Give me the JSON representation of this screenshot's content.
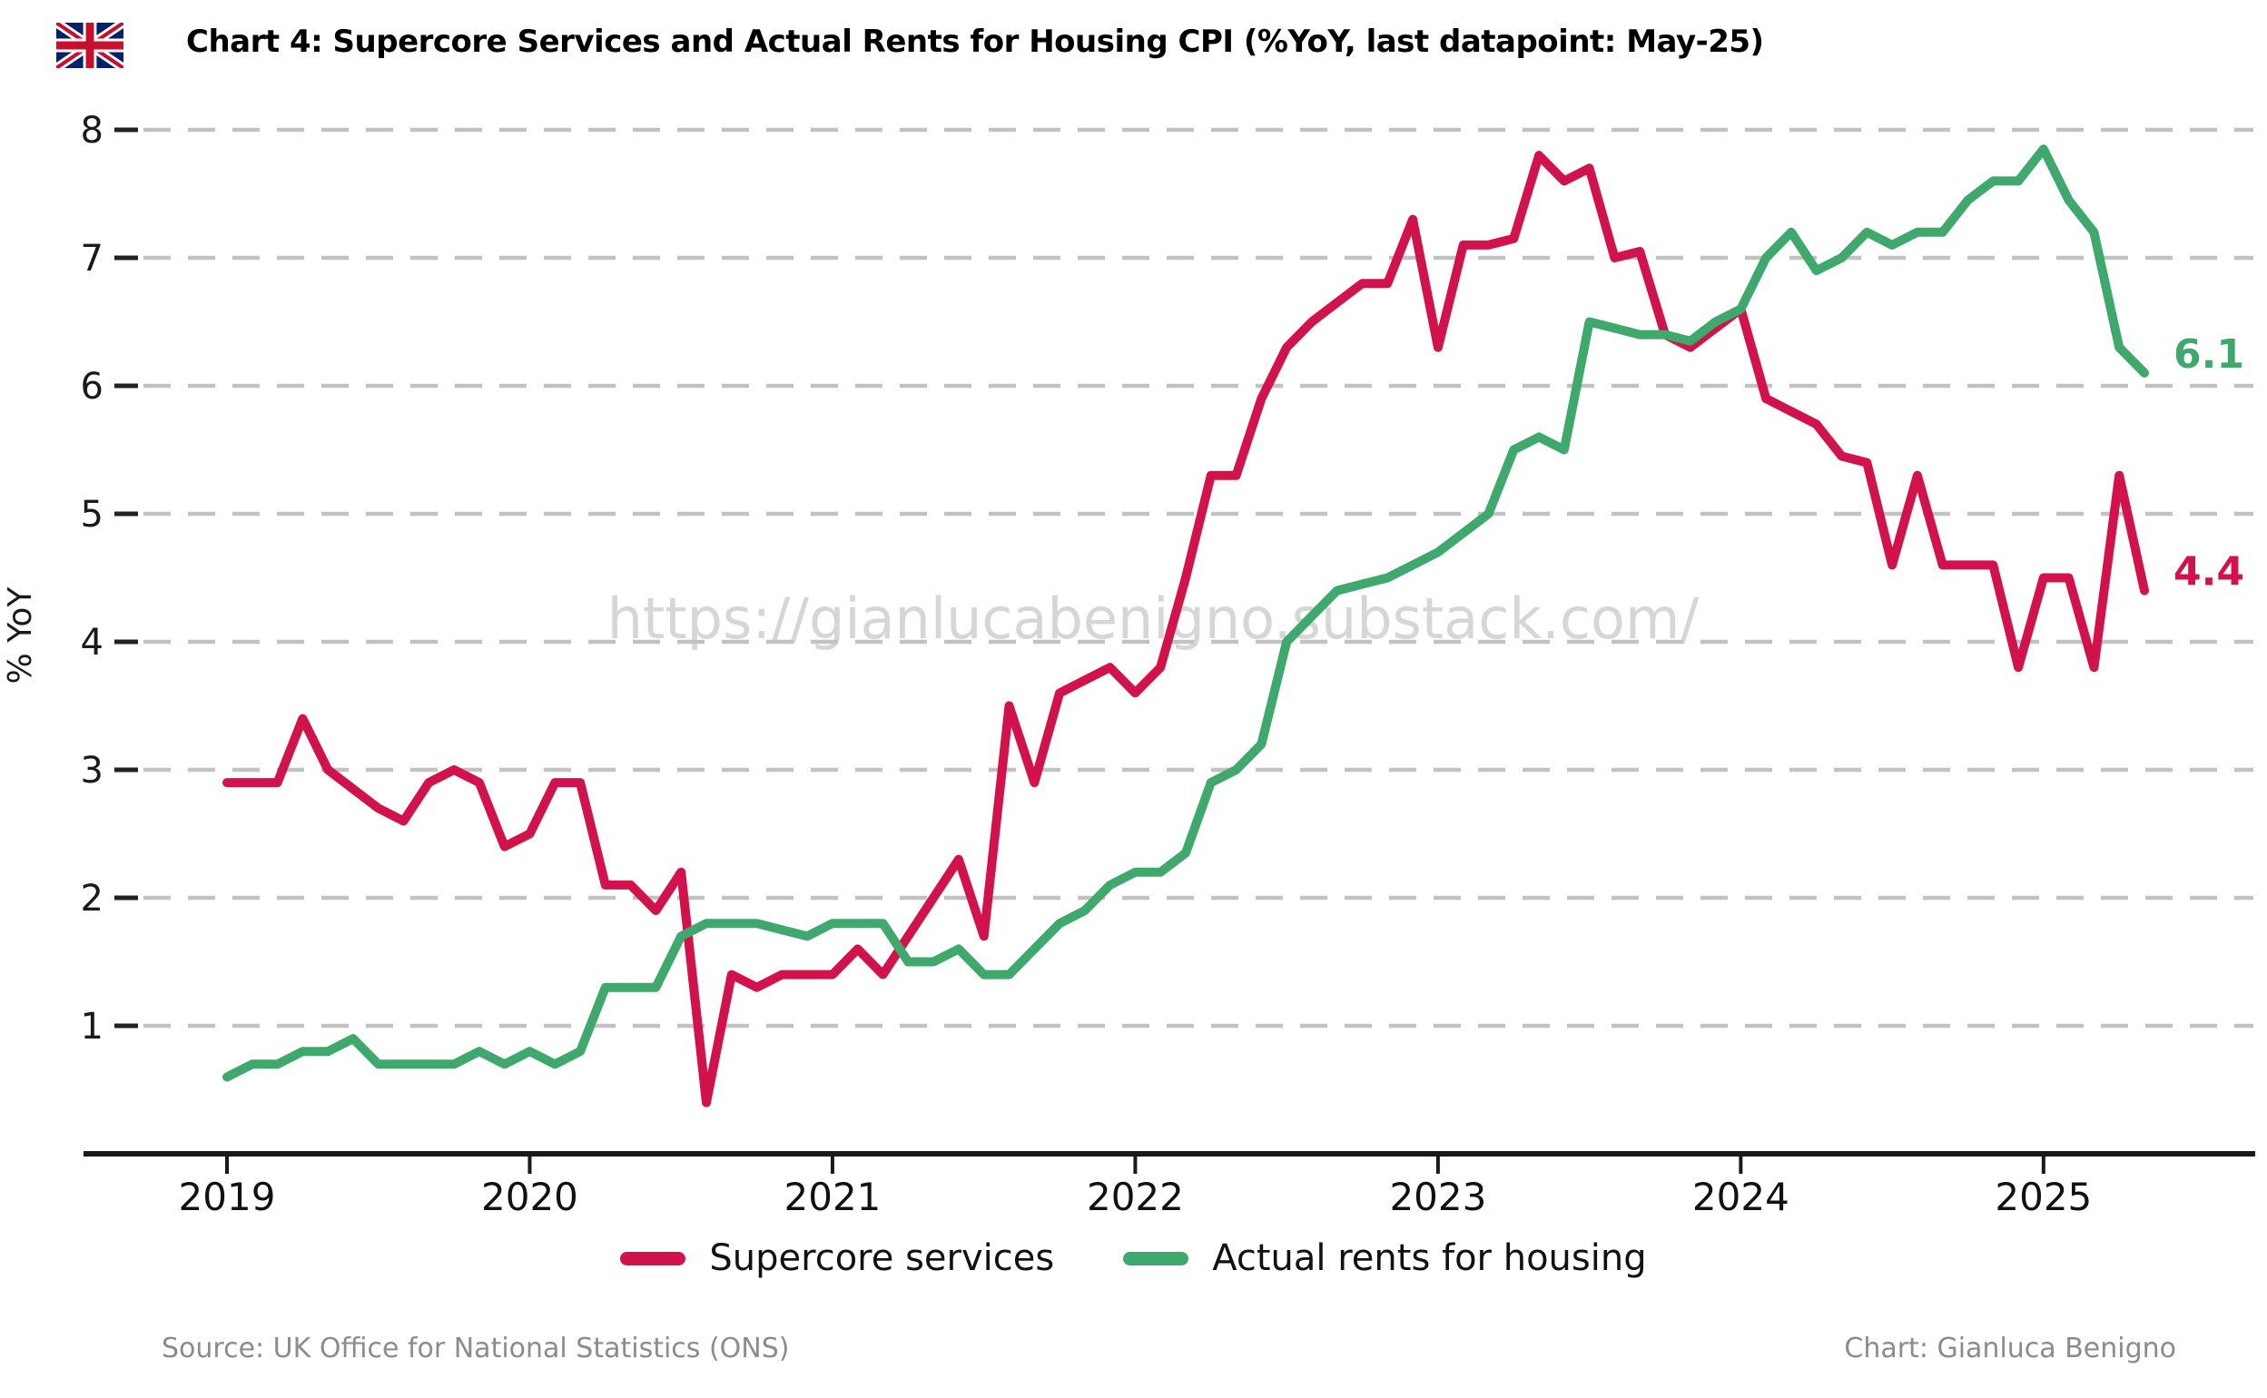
{
  "header": {
    "title": "Chart 4: Supercore Services and Actual Rents for Housing CPI (%YoY, last datapoint: May-25)",
    "flag_icon": "uk-flag"
  },
  "watermark": {
    "url": "https://gianlucabenigno.substack.com/",
    "color": "#d6d6d6"
  },
  "axes": {
    "y_label": "% YoY"
  },
  "footer": {
    "source": "Source: UK Office for National Statistics (ONS)",
    "credit": "Chart: Gianluca Benigno"
  },
  "chart_data": {
    "type": "line",
    "title": "Chart 4: Supercore Services and Actual Rents for Housing CPI (%YoY, last datapoint: May-25)",
    "ylabel": "% YoY",
    "ylim": [
      0,
      8
    ],
    "yticks": [
      1,
      2,
      3,
      4,
      5,
      6,
      7,
      8
    ],
    "x_years": [
      "2019",
      "2020",
      "2021",
      "2022",
      "2023",
      "2024",
      "2025"
    ],
    "frequency": "monthly",
    "start": "2019-01",
    "end": "2025-05",
    "grid": "horizontal-dashed",
    "legend_position": "bottom",
    "grid_color": "#c2c2c2",
    "series": [
      {
        "name": "Supercore services",
        "color": "#d2134b",
        "end_label": "4.4",
        "values": [
          2.9,
          2.9,
          2.9,
          3.4,
          3.0,
          2.85,
          2.7,
          2.6,
          2.9,
          3.0,
          2.9,
          2.4,
          2.5,
          2.9,
          2.9,
          2.1,
          2.1,
          1.9,
          2.2,
          0.4,
          1.4,
          1.3,
          1.4,
          1.4,
          1.4,
          1.6,
          1.4,
          1.7,
          2.0,
          2.3,
          1.7,
          3.5,
          2.9,
          3.6,
          3.7,
          3.8,
          3.6,
          3.8,
          4.5,
          5.3,
          5.3,
          5.9,
          6.3,
          6.5,
          6.65,
          6.8,
          6.8,
          7.3,
          6.3,
          7.1,
          7.1,
          7.15,
          7.8,
          7.6,
          7.7,
          7.0,
          7.05,
          6.4,
          6.3,
          6.45,
          6.6,
          5.9,
          5.8,
          5.7,
          5.45,
          5.4,
          4.6,
          5.3,
          4.6,
          4.6,
          4.6,
          3.8,
          4.5,
          4.5,
          3.8,
          5.3,
          4.4
        ]
      },
      {
        "name": "Actual rents for housing",
        "color": "#3fa86d",
        "end_label": "6.1",
        "values": [
          0.6,
          0.7,
          0.7,
          0.8,
          0.8,
          0.9,
          0.7,
          0.7,
          0.7,
          0.7,
          0.8,
          0.7,
          0.8,
          0.7,
          0.8,
          1.3,
          1.3,
          1.3,
          1.7,
          1.8,
          1.8,
          1.8,
          1.75,
          1.7,
          1.8,
          1.8,
          1.8,
          1.5,
          1.5,
          1.6,
          1.4,
          1.4,
          1.6,
          1.8,
          1.9,
          2.1,
          2.2,
          2.2,
          2.35,
          2.9,
          3.0,
          3.2,
          4.0,
          4.2,
          4.4,
          4.45,
          4.5,
          4.6,
          4.7,
          4.85,
          5.0,
          5.5,
          5.6,
          5.5,
          6.5,
          6.45,
          6.4,
          6.4,
          6.35,
          6.5,
          6.6,
          7.0,
          7.2,
          6.9,
          7.0,
          7.2,
          7.1,
          7.2,
          7.2,
          7.45,
          7.6,
          7.6,
          7.85,
          7.45,
          7.2,
          6.3,
          6.1
        ]
      }
    ]
  }
}
